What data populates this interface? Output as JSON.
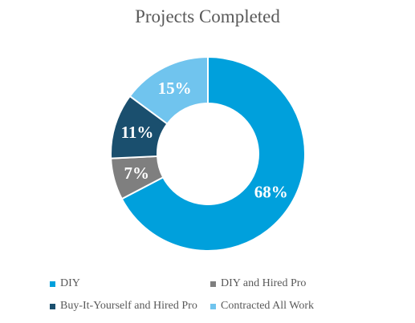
{
  "chart_data": {
    "type": "pie",
    "title": "Projects Completed",
    "categories": [
      "DIY",
      "DIY and Hired Pro",
      "Buy-It-Yourself and Hired Pro",
      "Contracted All Work"
    ],
    "values": [
      68,
      7,
      11,
      15
    ],
    "labels": [
      "68%",
      "7%",
      "11%",
      "15%"
    ],
    "colors": [
      "#00A0DC",
      "#7F7F7F",
      "#1A4F6E",
      "#70C4EE"
    ],
    "donut": true,
    "legend_position": "bottom"
  }
}
